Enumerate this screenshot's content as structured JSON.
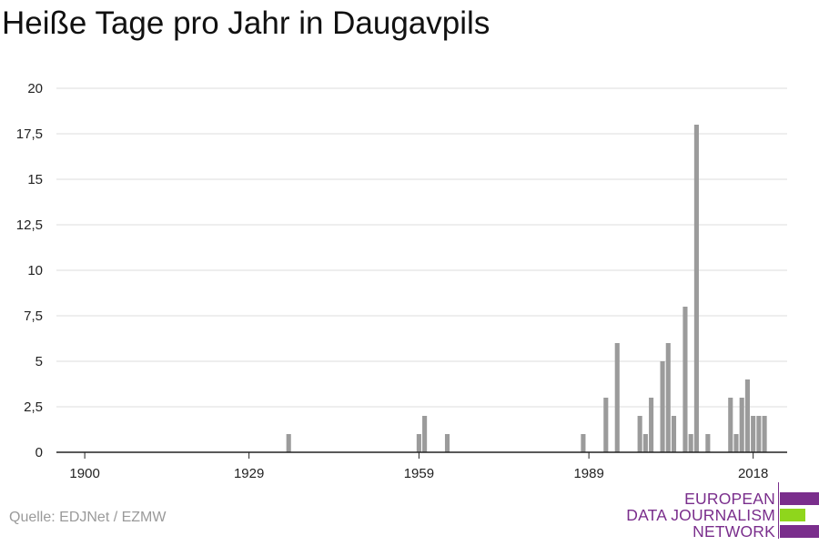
{
  "chart_title": "Heiße Tage pro Jahr in Daugavpils",
  "source": "Quelle: EDJNet / EZMW",
  "logo": {
    "line1": "EUROPEAN",
    "line2": "DATA JOURNALISM",
    "line3": "NETWORK",
    "colors": {
      "purple": "#7a2e8c",
      "green": "#8fd61c"
    }
  },
  "chart_data": {
    "type": "bar",
    "title": "Heiße Tage pro Jahr in Daugavpils",
    "xlabel": "",
    "ylabel": "",
    "xlim": [
      1895,
      2024
    ],
    "ylim": [
      0,
      20
    ],
    "grid": true,
    "bar_color": "#9b9b9b",
    "x_ticks": [
      1900,
      1929,
      1959,
      1989,
      2018
    ],
    "y_ticks": [
      0,
      2.5,
      5,
      7.5,
      10,
      12.5,
      15,
      17.5,
      20
    ],
    "y_tick_labels": [
      "0",
      "2,5",
      "5",
      "7,5",
      "10",
      "12,5",
      "15",
      "17,5",
      "20"
    ],
    "x": [
      1936,
      1959,
      1960,
      1964,
      1988,
      1992,
      1994,
      1998,
      1999,
      2000,
      2002,
      2003,
      2004,
      2006,
      2007,
      2008,
      2010,
      2014,
      2015,
      2016,
      2017,
      2018,
      2019,
      2020
    ],
    "values": [
      1,
      1,
      2,
      1,
      1,
      3,
      6,
      2,
      1,
      3,
      5,
      6,
      2,
      8,
      1,
      18,
      1,
      3,
      1,
      3,
      4,
      2,
      2,
      2
    ]
  }
}
